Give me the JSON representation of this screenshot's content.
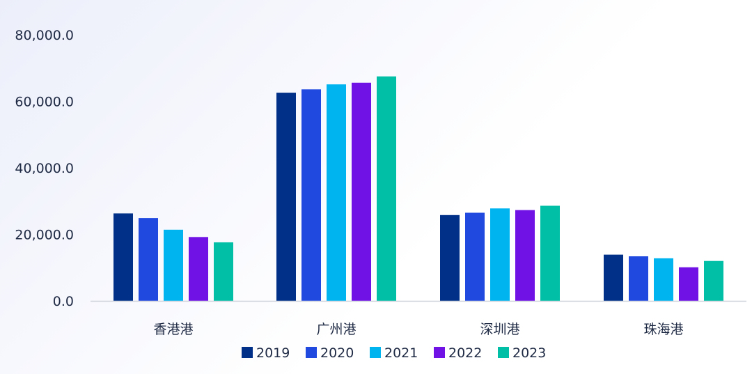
{
  "chart_data": {
    "type": "bar",
    "title": "",
    "xlabel": "",
    "ylabel": "",
    "categories": [
      "香港港",
      "广州港",
      "深圳港",
      "珠海港"
    ],
    "ylim": [
      0,
      80000
    ],
    "yticks": [
      0,
      20000,
      40000,
      60000,
      80000
    ],
    "ytick_labels": [
      "0.0",
      "20,000.0",
      "40,000.0",
      "60,000.0",
      "80,000.0"
    ],
    "legend_position": "bottom",
    "grid": false,
    "series": [
      {
        "name": "2019",
        "color": "#003087",
        "values": [
          26300,
          62600,
          25800,
          13900
        ]
      },
      {
        "name": "2020",
        "color": "#2049e0",
        "values": [
          24900,
          63600,
          26500,
          13400
        ]
      },
      {
        "name": "2021",
        "color": "#00b4f0",
        "values": [
          21400,
          65100,
          27800,
          12800
        ]
      },
      {
        "name": "2022",
        "color": "#7012e6",
        "values": [
          19200,
          65600,
          27300,
          10100
        ]
      },
      {
        "name": "2023",
        "color": "#00bfa6",
        "values": [
          17600,
          67500,
          28600,
          12000
        ]
      }
    ]
  }
}
